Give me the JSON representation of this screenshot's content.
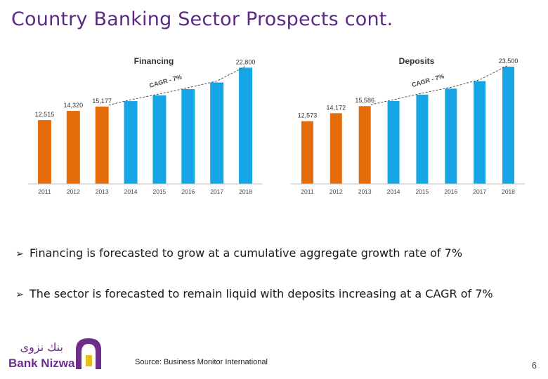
{
  "slide": {
    "title": "Country Banking Sector Prospects cont.",
    "page_number": "6",
    "source": "Source: Business Monitor International",
    "bullets": [
      "Financing is forecasted to grow at a cumulative aggregate growth rate of 7%",
      "The sector is forecasted to remain liquid with deposits increasing at a CAGR of 7%"
    ],
    "logo": {
      "arabic_text": "بنك نزوى",
      "english_text": "Bank Nizwa"
    },
    "colors": {
      "title": "#5b2a86",
      "actual_bar": "#e46c0a",
      "forecast_bar": "#16a6e6",
      "logo": "#6d2e8a",
      "logo_accent": "#e5c01d"
    }
  },
  "chart_data": [
    {
      "type": "bar",
      "title": "Financing",
      "categories": [
        "2011",
        "2012",
        "2013",
        "2014",
        "2015",
        "2016",
        "2017",
        "2018"
      ],
      "values": [
        12515,
        14320,
        15177,
        16240,
        17380,
        18600,
        19900,
        22800
      ],
      "data_labels": [
        "12,515",
        "14,320",
        "15,177",
        "",
        "",
        "",
        "",
        "22,800"
      ],
      "annotation": "CAGR - 7%",
      "actual_count": 3,
      "ylim": [
        0,
        23000
      ],
      "grid": false,
      "legend": "none"
    },
    {
      "type": "bar",
      "title": "Deposits",
      "categories": [
        "2011",
        "2012",
        "2013",
        "2014",
        "2015",
        "2016",
        "2017",
        "2018"
      ],
      "values": [
        12573,
        14172,
        15586,
        16600,
        17900,
        19100,
        20600,
        23500
      ],
      "data_labels": [
        "12,573",
        "14,172",
        "15,586",
        "",
        "",
        "",
        "",
        "23,500"
      ],
      "annotation": "CAGR - 7%",
      "actual_count": 3,
      "ylim": [
        0,
        23500
      ],
      "grid": false,
      "legend": "none"
    }
  ]
}
